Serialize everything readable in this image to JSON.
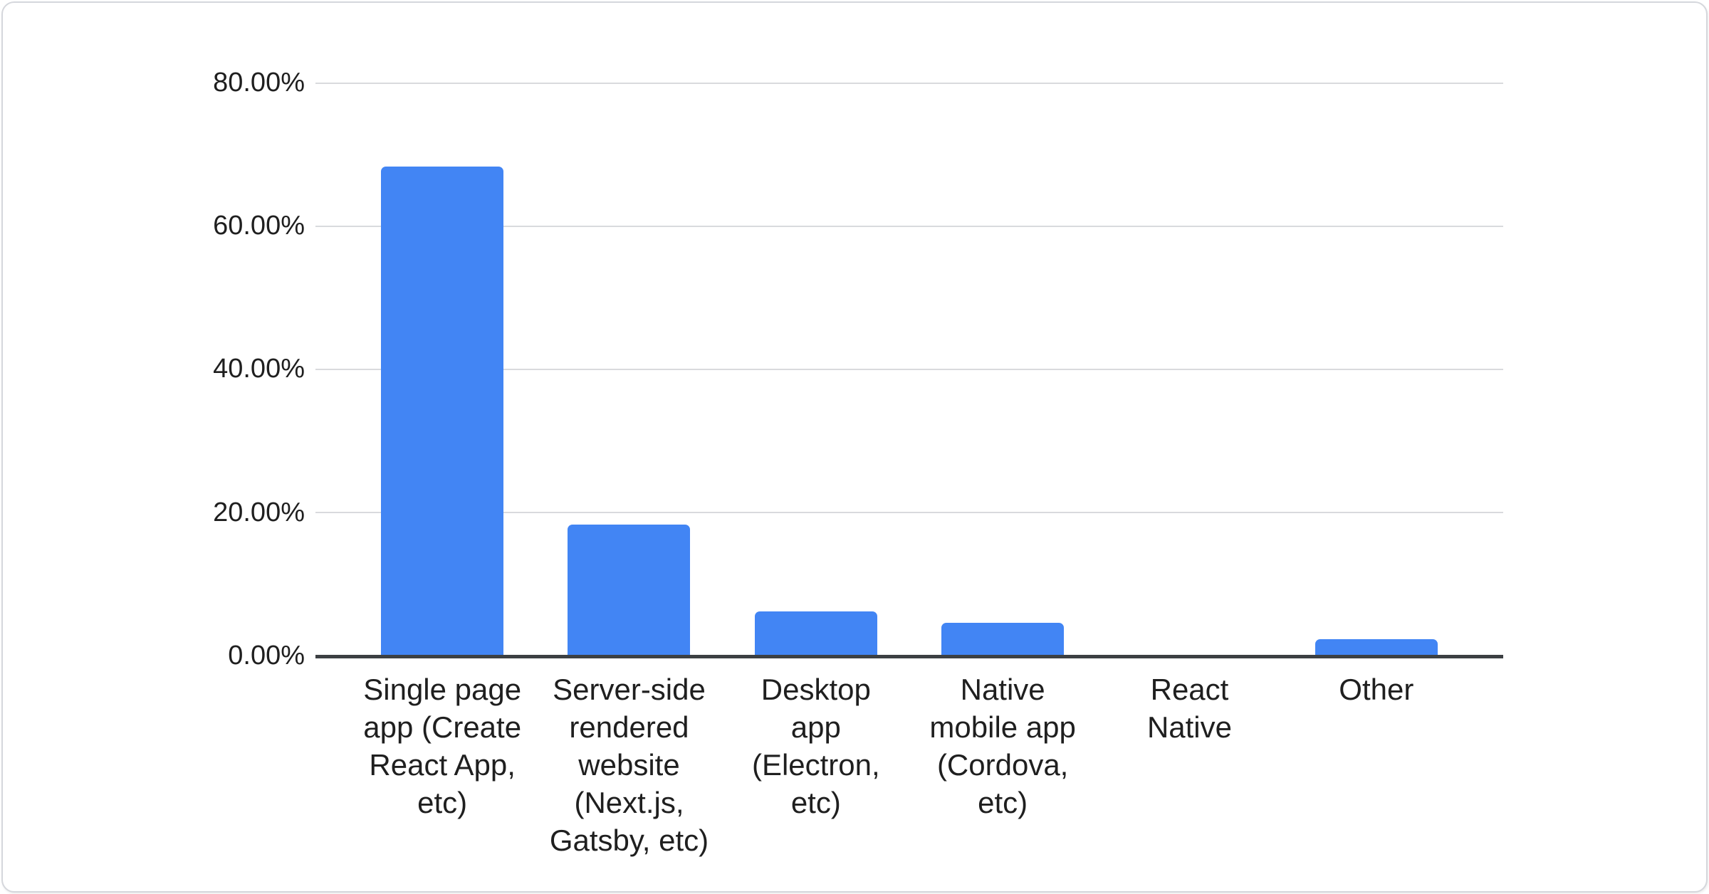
{
  "chart_data": {
    "type": "bar",
    "categories": [
      "Single page app (Create React App, etc)",
      "Server-side rendered website (Next.js, Gatsby, etc)",
      "Desktop app (Electron, etc)",
      "Native mobile app (Cordova, etc)",
      "React Native",
      "Other"
    ],
    "values": [
      68.3,
      18.2,
      6.1,
      4.5,
      0.0,
      2.2
    ],
    "series_name": "",
    "title": "",
    "xlabel": "",
    "ylabel": "",
    "ylim": [
      0,
      80
    ],
    "y_tick_step": 20,
    "y_tick_format": "percent-2-decimals",
    "grid": "horizontal-only",
    "legend_position": "none",
    "bar_color": "#4285f4"
  },
  "axis": {
    "y_tick_labels": [
      "80.00%",
      "60.00%",
      "40.00%",
      "20.00%",
      "0.00%"
    ],
    "x_labels_display": [
      "Single page\napp (Create\nReact App,\netc)",
      "Server-side\nrendered\nwebsite\n(Next.js,\nGatsby, etc)",
      "Desktop\napp\n(Electron,\netc)",
      "Native\nmobile app\n(Cordova,\netc)",
      "React\nNative",
      "Other"
    ]
  },
  "colors": {
    "bar": "#4285f4",
    "gridline": "#d9dadd",
    "axis_line": "#3c4043",
    "text": "#1f1f1f",
    "card_border": "#d5d7dc",
    "background": "#ffffff"
  }
}
